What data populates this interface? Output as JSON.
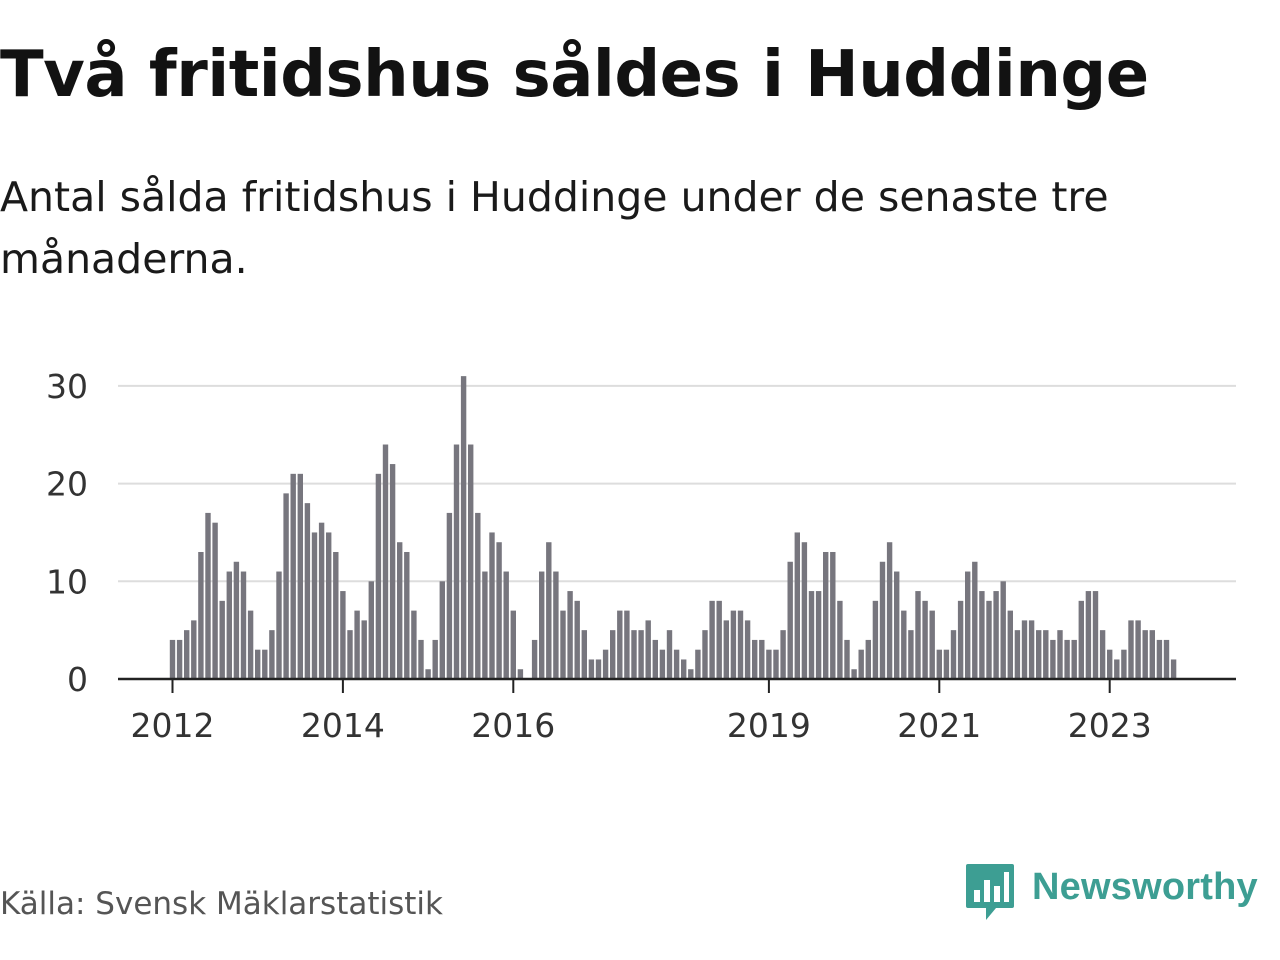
{
  "title": "Två fritidshus såldes i Huddinge",
  "subtitle": "Antal sålda fritidshus i Huddinge under de senaste tre månaderna.",
  "source": "Källa: Svensk Mäklarstatistik",
  "brand": {
    "name": "Newsworthy",
    "color": "#3d9e93"
  },
  "colors": {
    "bar": "#77767e",
    "highlight": "#3aa59a",
    "grid": "#dddddd",
    "axis": "#222222"
  },
  "chart_data": {
    "type": "bar",
    "title": "Antal sålda fritidshus i Huddinge",
    "xlabel": "",
    "ylabel": "",
    "ylim": [
      0,
      32
    ],
    "yticks": [
      0,
      10,
      20,
      30
    ],
    "grid": true,
    "x_start": "2012-01",
    "x_end": "2023-12",
    "xticks": [
      {
        "label": "2012",
        "index": 0
      },
      {
        "label": "2014",
        "index": 24
      },
      {
        "label": "2016",
        "index": 48
      },
      {
        "label": "2019",
        "index": 84
      },
      {
        "label": "2021",
        "index": 108
      },
      {
        "label": "2023",
        "index": 132
      }
    ],
    "values": [
      4,
      4,
      5,
      6,
      13,
      17,
      16,
      8,
      11,
      12,
      11,
      7,
      3,
      3,
      5,
      11,
      19,
      21,
      21,
      18,
      15,
      16,
      15,
      13,
      9,
      5,
      7,
      6,
      10,
      21,
      24,
      22,
      14,
      13,
      7,
      4,
      1,
      4,
      10,
      17,
      24,
      31,
      24,
      17,
      11,
      15,
      14,
      11,
      7,
      1,
      0,
      4,
      11,
      14,
      11,
      7,
      9,
      8,
      5,
      2,
      2,
      3,
      5,
      7,
      7,
      5,
      5,
      6,
      4,
      3,
      5,
      3,
      2,
      1,
      3,
      5,
      8,
      8,
      6,
      7,
      7,
      6,
      4,
      4,
      3,
      3,
      5,
      12,
      15,
      14,
      9,
      9,
      13,
      13,
      8,
      4,
      1,
      3,
      4,
      8,
      12,
      14,
      11,
      7,
      5,
      9,
      8,
      7,
      3,
      3,
      5,
      8,
      11,
      12,
      9,
      8,
      9,
      10,
      7,
      5,
      6,
      6,
      5,
      5,
      4,
      5,
      4,
      4,
      8,
      9,
      9,
      5,
      3,
      2,
      3,
      6,
      6,
      5,
      5,
      4,
      4,
      2
    ],
    "highlight_index": 143,
    "highlight_label": "2"
  }
}
